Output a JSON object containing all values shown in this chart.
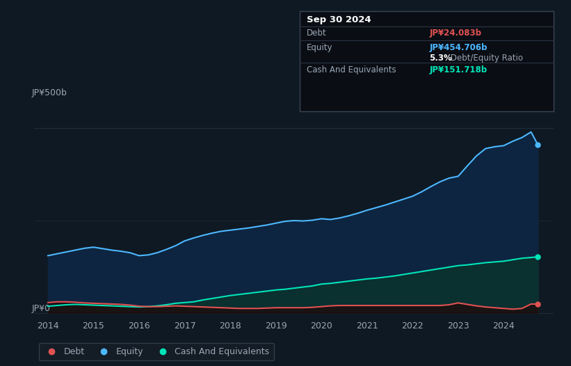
{
  "bg_color": "#0f1923",
  "plot_bg_color": "#0f1923",
  "grid_color": "#1e2d3d",
  "text_color": "#9ba8b5",
  "debt_color": "#e05252",
  "equity_color": "#4db8ff",
  "cash_color": "#00e5b8",
  "equity_fill": "#0d2540",
  "cash_fill": "#0a3030",
  "ylabel_500": "JP¥500b",
  "ylabel_0": "JP¥0",
  "years": [
    2014.0,
    2014.2,
    2014.4,
    2014.6,
    2014.8,
    2015.0,
    2015.2,
    2015.4,
    2015.6,
    2015.8,
    2016.0,
    2016.2,
    2016.4,
    2016.6,
    2016.8,
    2017.0,
    2017.2,
    2017.4,
    2017.6,
    2017.8,
    2018.0,
    2018.2,
    2018.4,
    2018.6,
    2018.8,
    2019.0,
    2019.2,
    2019.4,
    2019.6,
    2019.8,
    2020.0,
    2020.2,
    2020.4,
    2020.6,
    2020.8,
    2021.0,
    2021.2,
    2021.4,
    2021.6,
    2021.8,
    2022.0,
    2022.2,
    2022.4,
    2022.6,
    2022.8,
    2023.0,
    2023.2,
    2023.4,
    2023.6,
    2023.8,
    2024.0,
    2024.2,
    2024.4,
    2024.6,
    2024.75
  ],
  "equity": [
    155,
    160,
    165,
    170,
    175,
    178,
    174,
    170,
    167,
    163,
    155,
    157,
    163,
    172,
    182,
    195,
    203,
    210,
    216,
    221,
    224,
    227,
    230,
    234,
    238,
    243,
    248,
    250,
    249,
    251,
    255,
    253,
    257,
    263,
    270,
    278,
    285,
    292,
    300,
    308,
    316,
    328,
    342,
    355,
    365,
    370,
    398,
    425,
    445,
    450,
    453,
    465,
    475,
    490,
    455
  ],
  "cash": [
    18,
    20,
    22,
    23,
    22,
    21,
    20,
    19,
    18,
    17,
    16,
    17,
    19,
    22,
    26,
    28,
    30,
    35,
    39,
    43,
    47,
    50,
    53,
    56,
    59,
    62,
    64,
    67,
    70,
    73,
    78,
    80,
    83,
    86,
    89,
    92,
    94,
    97,
    100,
    104,
    108,
    112,
    116,
    120,
    124,
    128,
    130,
    133,
    136,
    138,
    140,
    144,
    148,
    150,
    152
  ],
  "debt": [
    28,
    30,
    30,
    29,
    27,
    26,
    25,
    24,
    23,
    21,
    18,
    17,
    17,
    18,
    19,
    18,
    17,
    16,
    15,
    14,
    13,
    12,
    12,
    12,
    13,
    14,
    14,
    14,
    14,
    15,
    17,
    19,
    20,
    20,
    20,
    20,
    20,
    20,
    20,
    20,
    20,
    20,
    20,
    20,
    22,
    27,
    23,
    19,
    16,
    14,
    12,
    10,
    12,
    24,
    24
  ],
  "xmin": 2013.7,
  "xmax": 2025.1,
  "ymin": -15,
  "ymax": 560,
  "xticks": [
    2014,
    2015,
    2016,
    2017,
    2018,
    2019,
    2020,
    2021,
    2022,
    2023,
    2024
  ],
  "legend_labels": [
    "Debt",
    "Equity",
    "Cash And Equivalents"
  ],
  "info_date": "Sep 30 2024",
  "info_debt_label": "Debt",
  "info_debt_value": "JP¥24.083b",
  "info_equity_label": "Equity",
  "info_equity_value": "JP¥454.706b",
  "info_ratio_bold": "5.3%",
  "info_ratio_rest": " Debt/Equity Ratio",
  "info_cash_label": "Cash And Equivalents",
  "info_cash_value": "JP¥151.718b"
}
